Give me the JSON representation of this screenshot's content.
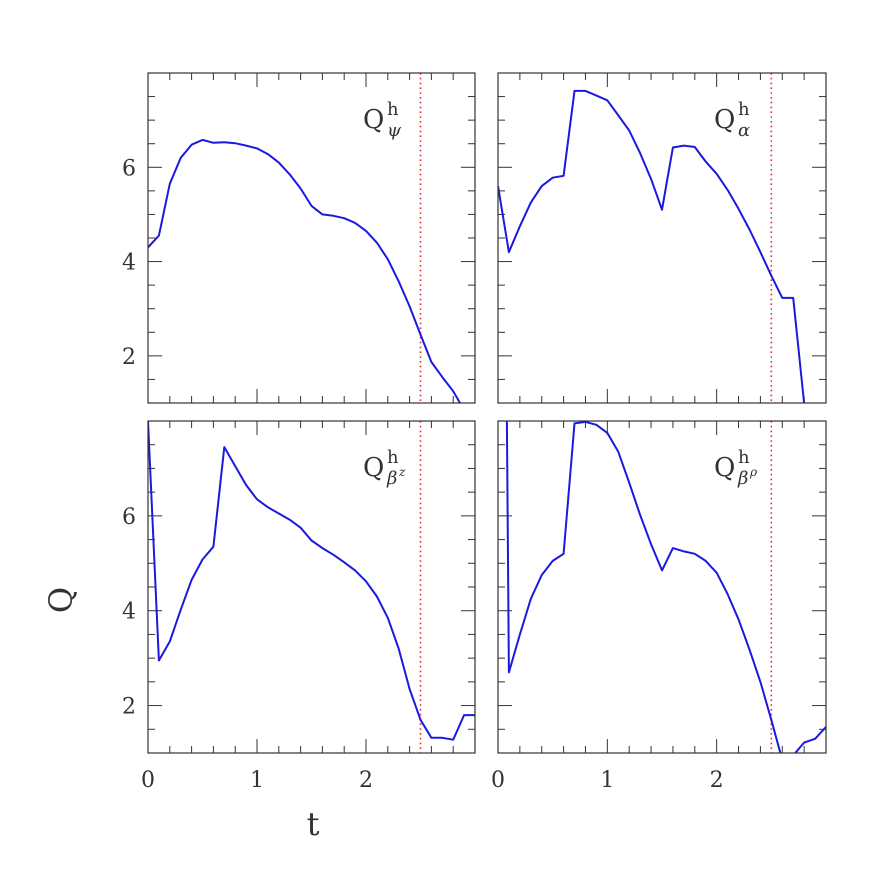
{
  "colors": {
    "series": "#1a1adf",
    "marker_line": "#e03030",
    "frame": "#333333"
  },
  "chart_data": [
    {
      "type": "line",
      "panel_label": {
        "main": "Q",
        "sup": "h",
        "sub": "ψ",
        "subsup": ""
      },
      "xlim": [
        0,
        3
      ],
      "ylim": [
        1,
        8
      ],
      "vline_x": 2.5,
      "x_tick_labels": [
        "",
        "",
        "",
        ""
      ],
      "y_tick_labels": [
        "",
        "2",
        "4",
        "6"
      ],
      "x": [
        0,
        0.1,
        0.2,
        0.3,
        0.4,
        0.5,
        0.6,
        0.7,
        0.8,
        0.9,
        1.0,
        1.1,
        1.2,
        1.3,
        1.4,
        1.5,
        1.6,
        1.7,
        1.8,
        1.9,
        2.0,
        2.1,
        2.2,
        2.3,
        2.4,
        2.5,
        2.6,
        2.7,
        2.8,
        2.9
      ],
      "y": [
        4.3,
        4.55,
        5.65,
        6.2,
        6.48,
        6.58,
        6.52,
        6.53,
        6.51,
        6.46,
        6.4,
        6.28,
        6.1,
        5.85,
        5.55,
        5.18,
        5.0,
        4.97,
        4.92,
        4.82,
        4.65,
        4.4,
        4.05,
        3.58,
        3.05,
        2.45,
        1.87,
        1.55,
        1.25,
        0.85
      ]
    },
    {
      "type": "line",
      "panel_label": {
        "main": "Q",
        "sup": "h",
        "sub": "α",
        "subsup": ""
      },
      "xlim": [
        0,
        3
      ],
      "ylim": [
        1,
        8
      ],
      "vline_x": 2.5,
      "x_tick_labels": [
        "",
        "",
        "",
        ""
      ],
      "y_tick_labels": [
        "",
        "",
        "",
        ""
      ],
      "x": [
        0,
        0.1,
        0.2,
        0.3,
        0.4,
        0.5,
        0.6,
        0.7,
        0.8,
        0.9,
        1.0,
        1.1,
        1.2,
        1.3,
        1.4,
        1.5,
        1.6,
        1.7,
        1.8,
        1.9,
        2.0,
        2.1,
        2.2,
        2.3,
        2.4,
        2.5,
        2.6,
        2.7,
        2.8,
        2.85
      ],
      "y": [
        5.6,
        4.2,
        4.75,
        5.25,
        5.6,
        5.78,
        5.82,
        7.62,
        7.62,
        7.52,
        7.42,
        7.1,
        6.78,
        6.3,
        5.75,
        5.1,
        6.42,
        6.46,
        6.43,
        6.12,
        5.86,
        5.52,
        5.12,
        4.68,
        4.2,
        3.7,
        3.23,
        3.23,
        1.0,
        0.5
      ]
    },
    {
      "type": "line",
      "panel_label": {
        "main": "Q",
        "sup": "h",
        "sub": "β",
        "subsup": "z"
      },
      "xlim": [
        0,
        3
      ],
      "ylim": [
        1,
        8
      ],
      "vline_x": 2.5,
      "x_tick_labels": [
        "0",
        "1",
        "2",
        ""
      ],
      "y_tick_labels": [
        "",
        "2",
        "4",
        "6"
      ],
      "x": [
        0,
        0.1,
        0.2,
        0.3,
        0.4,
        0.5,
        0.6,
        0.7,
        0.8,
        0.9,
        1.0,
        1.1,
        1.2,
        1.3,
        1.4,
        1.5,
        1.6,
        1.7,
        1.8,
        1.9,
        2.0,
        2.1,
        2.2,
        2.3,
        2.4,
        2.5,
        2.6,
        2.7,
        2.8,
        2.9,
        3.0
      ],
      "y": [
        8.0,
        2.95,
        3.35,
        4.02,
        4.65,
        5.08,
        5.35,
        7.45,
        7.05,
        6.65,
        6.35,
        6.18,
        6.05,
        5.92,
        5.75,
        5.48,
        5.32,
        5.18,
        5.02,
        4.85,
        4.62,
        4.3,
        3.85,
        3.2,
        2.35,
        1.7,
        1.32,
        1.32,
        1.28,
        1.8,
        1.8
      ]
    },
    {
      "type": "line",
      "panel_label": {
        "main": "Q",
        "sup": "h",
        "sub": "β",
        "subsup": "ρ"
      },
      "xlim": [
        0,
        3
      ],
      "ylim": [
        1,
        8
      ],
      "vline_x": 2.5,
      "x_tick_labels": [
        "0",
        "1",
        "2",
        ""
      ],
      "y_tick_labels": [
        "",
        "",
        "",
        ""
      ],
      "x": [
        0.08,
        0.1,
        0.2,
        0.3,
        0.4,
        0.5,
        0.6,
        0.7,
        0.8,
        0.9,
        1.0,
        1.1,
        1.2,
        1.3,
        1.4,
        1.5,
        1.6,
        1.7,
        1.8,
        1.9,
        2.0,
        2.1,
        2.2,
        2.3,
        2.4,
        2.5,
        2.6,
        2.7,
        2.8,
        2.9,
        3.0
      ],
      "y": [
        8.5,
        2.7,
        3.5,
        4.25,
        4.75,
        5.05,
        5.2,
        7.95,
        7.98,
        7.92,
        7.75,
        7.35,
        6.7,
        6.02,
        5.4,
        4.85,
        5.32,
        5.25,
        5.2,
        5.05,
        4.8,
        4.35,
        3.82,
        3.18,
        2.5,
        1.7,
        0.85,
        0.95,
        1.22,
        1.3,
        1.55
      ]
    }
  ],
  "axis_titles": {
    "y": "Q",
    "x": "t"
  }
}
